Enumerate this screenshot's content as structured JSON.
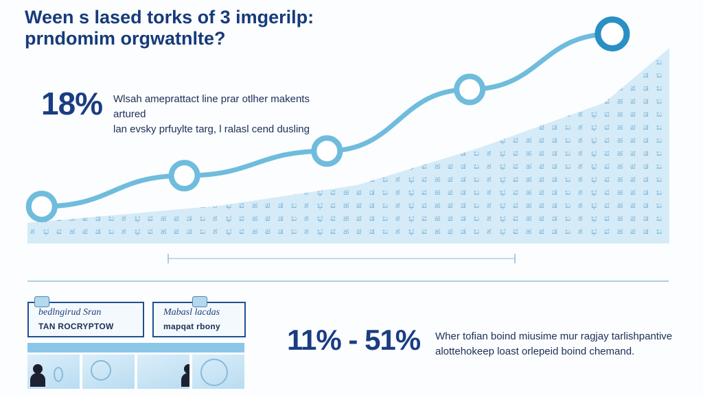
{
  "title": {
    "line1": "Ween s lased torks of 3 imgerilp:",
    "line2": "prndomim orgwatnlte?"
  },
  "stat_main": {
    "value": "18%",
    "desc_line1": "Wlsah ameprattact line prar otlher makents artured",
    "desc_line2": "lan evsky prfuylte targ, l ralasl cend dusling"
  },
  "chart_data": {
    "type": "line",
    "x": [
      1,
      2,
      3,
      4,
      5
    ],
    "values": [
      1.2,
      2.2,
      3.0,
      5.0,
      6.8
    ],
    "ylim": [
      0,
      7.5
    ],
    "xlim": [
      0.9,
      5.4
    ],
    "area_fill": true,
    "colors": {
      "line": "#6fbcdc",
      "marker_fill": "#ffffff",
      "last_marker_stroke": "#2a8fc4",
      "area": "#d5ebf7",
      "area_glyph": "#5fa2cf"
    }
  },
  "cards": [
    {
      "line1": "bedlngirud Sran",
      "line2": "TAN ROCRYPTOW"
    },
    {
      "line1": "Mabasl lacdas",
      "line2": "mapqat rbony"
    }
  ],
  "stat_range": {
    "value": "11% - 51%",
    "desc_line1": "Wher tofian boind miusime mur ragjay tarlishpantive",
    "desc_line2": "alottehokeep loast orlepeid boind chemand."
  },
  "icons": {
    "card_deco": "folder-icon",
    "person": "person-icon"
  }
}
